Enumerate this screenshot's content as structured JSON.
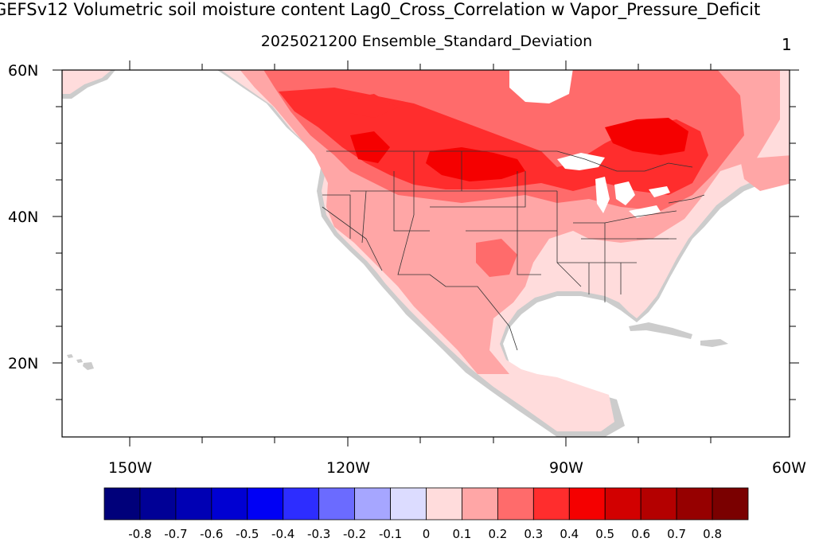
{
  "title": "GEFSv12 Volumetric soil moisture content Lag0_Cross_Correlation w Vapor_Pressure_Deficit",
  "subtitle": "2025021200 Ensemble_Standard_Deviation",
  "panel_number": "1",
  "lat_labels": [
    "60N",
    "40N",
    "20N"
  ],
  "lon_labels": [
    "150W",
    "120W",
    "90W",
    "60W"
  ],
  "colorbar": {
    "labels": [
      "-0.8",
      "-0.7",
      "-0.6",
      "-0.5",
      "-0.4",
      "-0.3",
      "-0.2",
      "-0.1",
      "0",
      "0.1",
      "0.2",
      "0.3",
      "0.4",
      "0.5",
      "0.6",
      "0.7",
      "0.8"
    ],
    "colors": [
      "#00007a",
      "#000096",
      "#0000b4",
      "#0000d2",
      "#0000f5",
      "#2d2dff",
      "#6b6bff",
      "#a6a6ff",
      "#dcdcff",
      "#ffdcdc",
      "#ffa6a6",
      "#ff6b6b",
      "#ff2d2d",
      "#f50000",
      "#d20000",
      "#b40000",
      "#960000",
      "#7a0000"
    ]
  },
  "map": {
    "lat_range": [
      10,
      60
    ],
    "lon_range": [
      -160,
      -60
    ],
    "land_color": "#ffdcdc",
    "missing_color": "#cccccc"
  }
}
